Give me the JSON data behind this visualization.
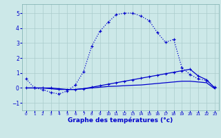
{
  "xlabel": "Graphe des températures (°c)",
  "bg_color": "#cce8e8",
  "line_color": "#0000cc",
  "grid_color": "#aacccc",
  "xlim": [
    -0.5,
    23.5
  ],
  "ylim": [
    -1.5,
    5.6
  ],
  "yticks": [
    -1,
    0,
    1,
    2,
    3,
    4,
    5
  ],
  "xticks": [
    0,
    1,
    2,
    3,
    4,
    5,
    6,
    7,
    8,
    9,
    10,
    11,
    12,
    13,
    14,
    15,
    16,
    17,
    18,
    19,
    20,
    21,
    22,
    23
  ],
  "curve1_x": [
    0,
    1,
    2,
    3,
    4,
    5,
    6,
    7,
    8,
    9,
    10,
    11,
    12,
    13,
    14,
    15,
    16,
    17,
    18,
    19,
    20,
    21,
    22,
    23
  ],
  "curve1_y": [
    0.6,
    0.0,
    -0.1,
    -0.3,
    -0.4,
    -0.2,
    0.2,
    1.1,
    2.8,
    3.8,
    4.4,
    4.9,
    5.0,
    5.0,
    4.8,
    4.5,
    3.7,
    3.05,
    3.25,
    1.35,
    0.9,
    0.6,
    0.5,
    0.05
  ],
  "curve2_x": [
    0,
    1,
    2,
    3,
    4,
    5,
    6,
    7,
    8,
    9,
    10,
    11,
    12,
    13,
    14,
    15,
    16,
    17,
    18,
    19,
    20,
    21,
    22,
    23
  ],
  "curve2_y": [
    0.0,
    0.0,
    0.0,
    0.0,
    -0.05,
    -0.1,
    -0.1,
    -0.05,
    0.05,
    0.15,
    0.25,
    0.35,
    0.45,
    0.55,
    0.65,
    0.75,
    0.85,
    0.95,
    1.05,
    1.15,
    1.25,
    0.8,
    0.55,
    0.0
  ],
  "curve3_x": [
    0,
    1,
    2,
    3,
    4,
    5,
    6,
    7,
    8,
    9,
    10,
    11,
    12,
    13,
    14,
    15,
    16,
    17,
    18,
    19,
    20,
    21,
    22,
    23
  ],
  "curve3_y": [
    0.0,
    0.0,
    0.0,
    -0.05,
    -0.1,
    -0.1,
    -0.1,
    -0.05,
    0.0,
    0.05,
    0.1,
    0.12,
    0.15,
    0.18,
    0.2,
    0.25,
    0.3,
    0.35,
    0.4,
    0.45,
    0.45,
    0.4,
    0.35,
    -0.05
  ]
}
